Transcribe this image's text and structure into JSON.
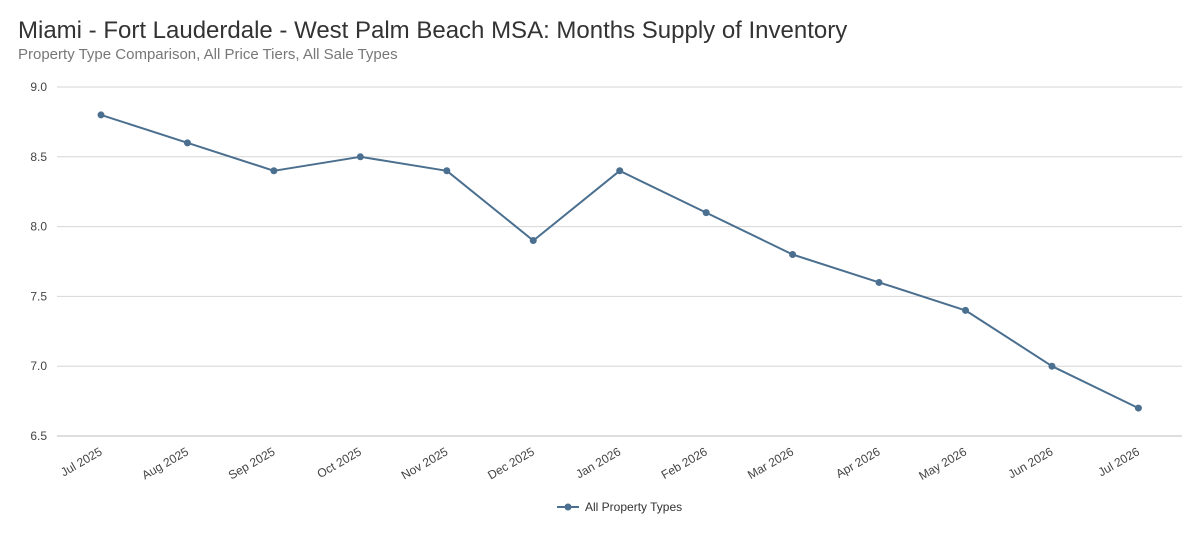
{
  "chart_data": {
    "type": "line",
    "title": "Miami - Fort Lauderdale - West Palm Beach MSA: Months Supply of Inventory",
    "subtitle": "Property Type Comparison, All Price Tiers, All Sale Types",
    "xlabel": "",
    "ylabel": "",
    "categories": [
      "Jul 2025",
      "Aug 2025",
      "Sep 2025",
      "Oct 2025",
      "Nov 2025",
      "Dec 2025",
      "Jan 2026",
      "Feb 2026",
      "Mar 2026",
      "Apr 2026",
      "May 2026",
      "Jun 2026",
      "Jul 2026"
    ],
    "series": [
      {
        "name": "All Property Types",
        "color": "#4a6f8f",
        "values": [
          8.8,
          8.6,
          8.4,
          8.5,
          8.4,
          7.9,
          8.4,
          8.1,
          7.8,
          7.6,
          7.4,
          7.0,
          6.7
        ]
      }
    ],
    "ylim": [
      6.5,
      9.0
    ],
    "yticks": [
      "6.5",
      "7.0",
      "7.5",
      "8.0",
      "8.5",
      "9.0"
    ],
    "grid": true,
    "legend_position": "bottom-center"
  }
}
